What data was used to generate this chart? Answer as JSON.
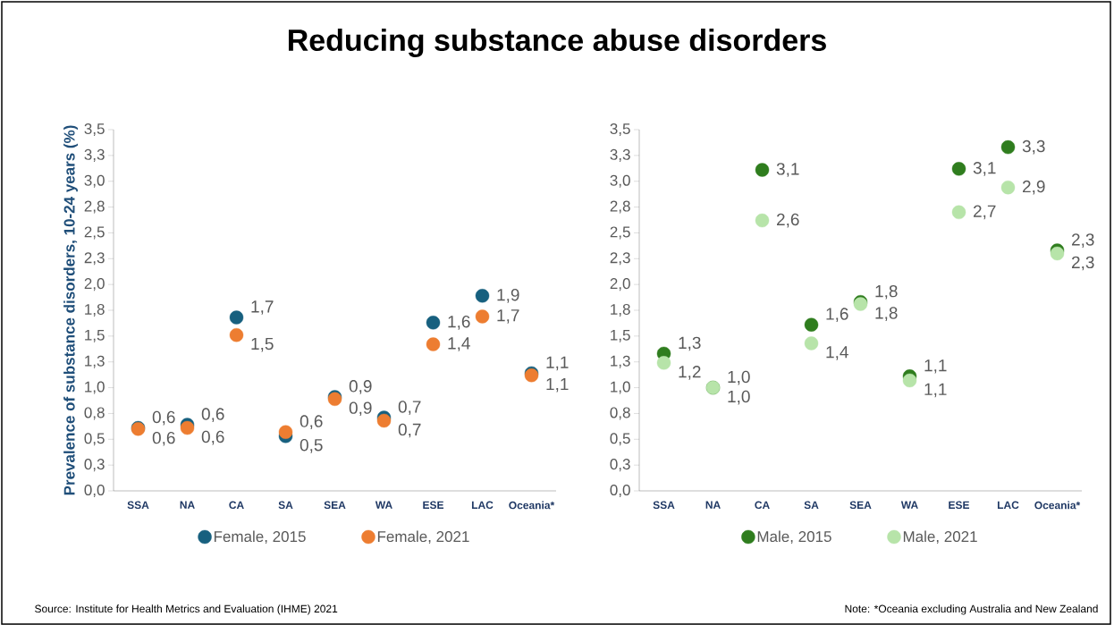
{
  "chart_data": [
    {
      "type": "scatter",
      "title": "Reducing substance abuse disorders",
      "ylabel": "Prevalence of substance disorders, 10-24 years (%)",
      "categories": [
        "SSA",
        "NA",
        "CA",
        "SA",
        "SEA",
        "WA",
        "ESE",
        "LAC",
        "Oceania*"
      ],
      "series": [
        {
          "name": "Female, 2015",
          "color": "#17607f",
          "values": [
            0.61,
            0.64,
            1.68,
            0.53,
            0.91,
            0.71,
            1.63,
            1.89,
            1.14
          ],
          "value_labels": [
            "0,6",
            "0,6",
            "1,7",
            "0,5",
            "0,9",
            "0,7",
            "1,6",
            "1,9",
            "1,1"
          ]
        },
        {
          "name": "Female, 2021",
          "color": "#ed7d31",
          "values": [
            0.6,
            0.61,
            1.51,
            0.57,
            0.89,
            0.68,
            1.42,
            1.69,
            1.12
          ],
          "value_labels": [
            "0,6",
            "0,6",
            "1,5",
            "0,6",
            "0,9",
            "0,7",
            "1,4",
            "1,7",
            "1,1"
          ]
        }
      ],
      "ylim": [
        0,
        3.5
      ],
      "yticks": [
        {
          "value": 0,
          "label": "0,0"
        },
        {
          "value": 0.25,
          "label": "0,3"
        },
        {
          "value": 0.5,
          "label": "0,5"
        },
        {
          "value": 0.75,
          "label": "0,8"
        },
        {
          "value": 1,
          "label": "1,0"
        },
        {
          "value": 1.25,
          "label": "1,3"
        },
        {
          "value": 1.5,
          "label": "1,5"
        },
        {
          "value": 1.75,
          "label": "1,8"
        },
        {
          "value": 2,
          "label": "2,0"
        },
        {
          "value": 2.25,
          "label": "2,3"
        },
        {
          "value": 2.5,
          "label": "2,5"
        },
        {
          "value": 2.75,
          "label": "2,8"
        },
        {
          "value": 3,
          "label": "3,0"
        },
        {
          "value": 3.25,
          "label": "3,3"
        },
        {
          "value": 3.5,
          "label": "3,5"
        }
      ],
      "marker": "circle",
      "legend": "bottom",
      "grid": false,
      "annotations": [
        "Source: Institute for Health Metrics and Evaluation (IHME) 2021"
      ]
    },
    {
      "type": "scatter",
      "categories": [
        "SSA",
        "NA",
        "CA",
        "SA",
        "SEA",
        "WA",
        "ESE",
        "LAC",
        "Oceania*"
      ],
      "series": [
        {
          "name": "Male, 2015",
          "color": "#2f7d1e",
          "values": [
            1.33,
            1.0,
            3.11,
            1.61,
            1.83,
            1.11,
            3.12,
            3.33,
            2.33
          ],
          "value_labels": [
            "1,3",
            "1,0",
            "3,1",
            "1,6",
            "1,8",
            "1,1",
            "3,1",
            "3,3",
            "2,3"
          ]
        },
        {
          "name": "Male, 2021",
          "color": "#b7e4a9",
          "values": [
            1.24,
            1.0,
            2.62,
            1.43,
            1.81,
            1.07,
            2.7,
            2.94,
            2.3
          ],
          "value_labels": [
            "1,2",
            "1,0",
            "2,6",
            "1,4",
            "1,8",
            "1,1",
            "2,7",
            "2,9",
            "2,3"
          ]
        }
      ],
      "ylim": [
        0,
        3.5
      ],
      "yticks": [
        {
          "value": 0,
          "label": "0,0"
        },
        {
          "value": 0.25,
          "label": "0,3"
        },
        {
          "value": 0.5,
          "label": "0,5"
        },
        {
          "value": 0.75,
          "label": "0,8"
        },
        {
          "value": 1,
          "label": "1,0"
        },
        {
          "value": 1.25,
          "label": "1,3"
        },
        {
          "value": 1.5,
          "label": "1,5"
        },
        {
          "value": 1.75,
          "label": "1,8"
        },
        {
          "value": 2,
          "label": "2,0"
        },
        {
          "value": 2.25,
          "label": "2,3"
        },
        {
          "value": 2.5,
          "label": "2,5"
        },
        {
          "value": 2.75,
          "label": "2,8"
        },
        {
          "value": 3,
          "label": "3,0"
        },
        {
          "value": 3.25,
          "label": "3,3"
        },
        {
          "value": 3.5,
          "label": "3,5"
        }
      ],
      "marker": "circle",
      "legend": "bottom",
      "grid": false,
      "annotations": [
        "Note: *Oceania excluding Australia and New Zealand"
      ]
    }
  ]
}
